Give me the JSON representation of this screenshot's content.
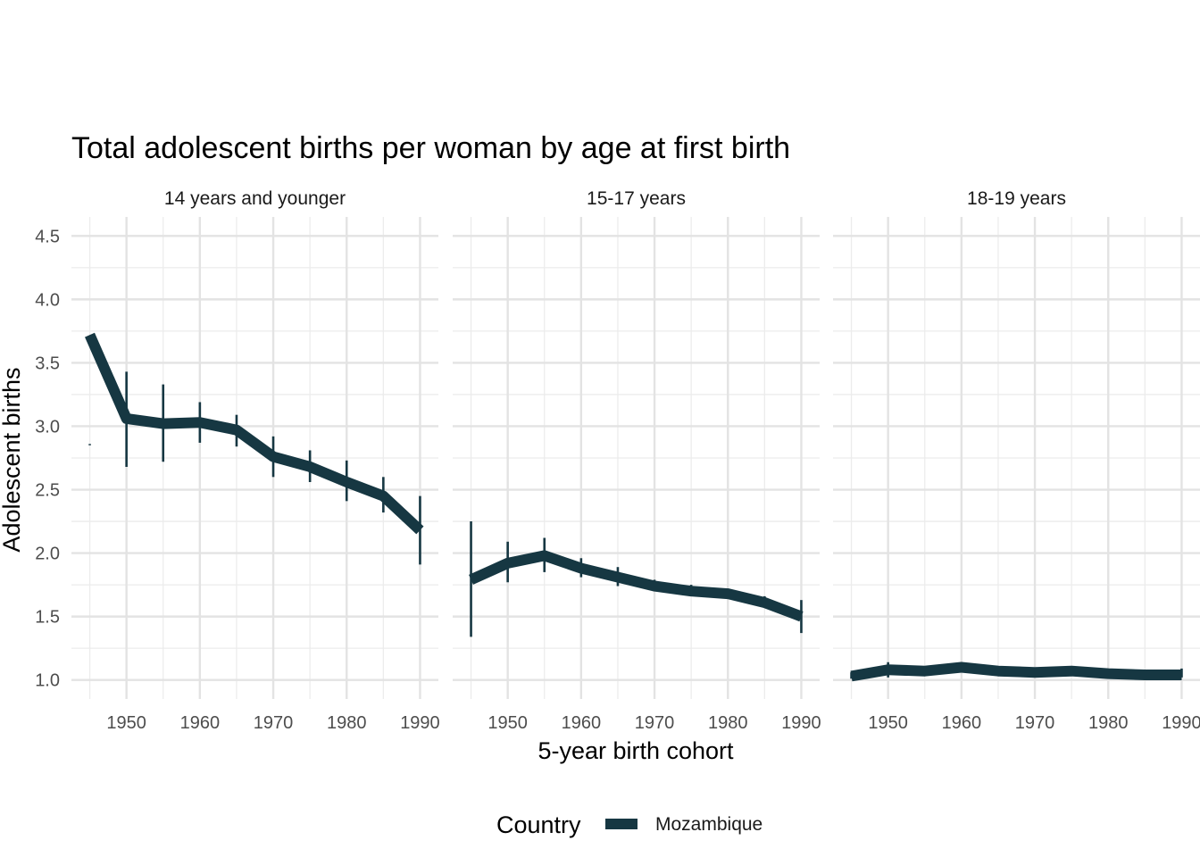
{
  "chart_data": {
    "type": "line",
    "title": "Total adolescent births per woman by age at first birth",
    "xlabel": "5-year birth cohort",
    "ylabel": "Adolescent births",
    "ylim": [
      0.85,
      4.65
    ],
    "xlim": [
      1942.5,
      1992.5
    ],
    "y_ticks": [
      1.0,
      1.5,
      2.0,
      2.5,
      3.0,
      3.5,
      4.0,
      4.5
    ],
    "y_tick_labels": [
      "1.0",
      "1.5",
      "2.0",
      "2.5",
      "3.0",
      "3.5",
      "4.0",
      "4.5"
    ],
    "x_ticks": [
      1950,
      1960,
      1970,
      1980,
      1990
    ],
    "x_tick_labels": [
      "1950",
      "1960",
      "1970",
      "1980",
      "1990"
    ],
    "grid": true,
    "legend": {
      "title": "Country",
      "position": "bottom",
      "entries": [
        "Mozambique"
      ]
    },
    "color": "#163742",
    "panels": [
      {
        "label": "14 years and younger",
        "series": [
          {
            "name": "Mozambique",
            "x": [
              1945,
              1950,
              1955,
              1960,
              1965,
              1970,
              1975,
              1980,
              1985,
              1990
            ],
            "values": [
              3.72,
              3.06,
              3.02,
              3.03,
              2.97,
              2.76,
              2.68,
              2.56,
              2.45,
              2.18
            ],
            "lower": [
              2.85,
              2.68,
              2.72,
              2.87,
              2.84,
              2.6,
              2.56,
              2.41,
              2.32,
              1.91
            ],
            "upper": [
              2.86,
              3.43,
              3.33,
              3.19,
              3.09,
              2.92,
              2.81,
              2.73,
              2.6,
              2.45
            ]
          }
        ]
      },
      {
        "label": "15-17 years",
        "series": [
          {
            "name": "Mozambique",
            "x": [
              1945,
              1950,
              1955,
              1960,
              1965,
              1970,
              1975,
              1980,
              1985,
              1990
            ],
            "values": [
              1.79,
              1.92,
              1.98,
              1.88,
              1.81,
              1.74,
              1.7,
              1.68,
              1.61,
              1.5
            ],
            "lower": [
              1.34,
              1.77,
              1.85,
              1.81,
              1.74,
              1.71,
              1.66,
              1.65,
              1.58,
              1.37
            ],
            "upper": [
              2.25,
              2.09,
              2.12,
              1.96,
              1.89,
              1.79,
              1.75,
              1.72,
              1.66,
              1.63
            ]
          }
        ]
      },
      {
        "label": "18-19 years",
        "series": [
          {
            "name": "Mozambique",
            "x": [
              1945,
              1950,
              1955,
              1960,
              1965,
              1970,
              1975,
              1980,
              1985,
              1990
            ],
            "values": [
              1.03,
              1.08,
              1.07,
              1.1,
              1.07,
              1.06,
              1.07,
              1.05,
              1.04,
              1.04
            ],
            "lower": [
              1.01,
              1.02,
              1.04,
              1.08,
              1.05,
              1.05,
              1.06,
              1.04,
              1.03,
              1.02
            ],
            "upper": [
              1.06,
              1.14,
              1.1,
              1.13,
              1.09,
              1.08,
              1.09,
              1.07,
              1.06,
              1.09
            ]
          }
        ]
      }
    ]
  }
}
